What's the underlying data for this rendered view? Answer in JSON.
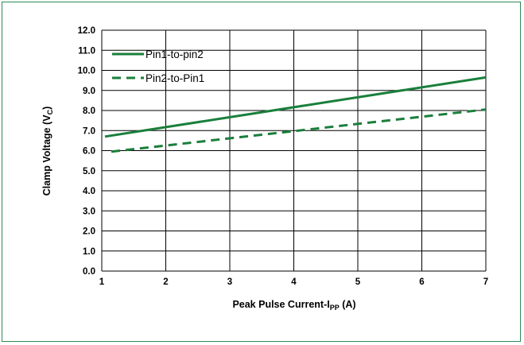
{
  "chart_data": {
    "type": "line",
    "xlabel": "Peak Pulse Current-I",
    "xlabel_sub": "PP",
    "xlabel_suffix": " (A)",
    "ylabel": "Clamp Voltage (V",
    "ylabel_sub": "C",
    "ylabel_suffix": ")",
    "xlim": [
      1,
      7
    ],
    "ylim": [
      0,
      12
    ],
    "x_ticks": [
      "1",
      "2",
      "3",
      "4",
      "5",
      "6",
      "7"
    ],
    "y_ticks": [
      "0.0",
      "1.0",
      "2.0",
      "3.0",
      "4.0",
      "5.0",
      "6.0",
      "7.0",
      "8.0",
      "9.0",
      "10.0",
      "11.0",
      "12.0"
    ],
    "grid": true,
    "legend_position": "top-left",
    "series": [
      {
        "name": "Pin1-to-pin2",
        "x": [
          1.05,
          7
        ],
        "y": [
          6.7,
          9.65
        ],
        "color": "#1a7f3c",
        "style": "solid"
      },
      {
        "name": "Pin2-to-Pin1",
        "x": [
          1.15,
          7
        ],
        "y": [
          5.95,
          8.05
        ],
        "color": "#1a7f3c",
        "style": "dashed"
      }
    ]
  }
}
